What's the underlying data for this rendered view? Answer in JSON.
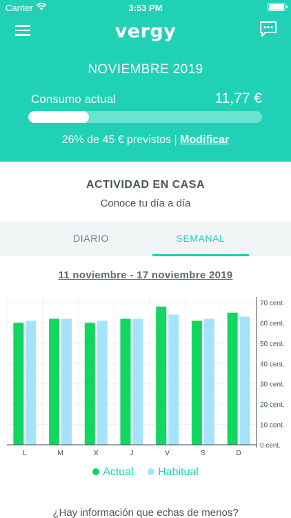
{
  "status_bar": {
    "carrier": "Carrier",
    "time": "3:53 PM"
  },
  "app": {
    "logo": "vergy"
  },
  "summary": {
    "month": "NOVIEMBRE 2019",
    "consumo_label": "Consumo actual",
    "consumo_value": "11,77 €",
    "progress_fraction": 0.26,
    "percent_text": "26%",
    "de_text": "de",
    "previstos_text": "45 € previstos",
    "separator": "|",
    "modificar_label": "Modificar"
  },
  "activity": {
    "title": "ACTIVIDAD EN CASA",
    "subtitle": "Conoce tu día a día"
  },
  "tabs": [
    {
      "label": "DIARIO",
      "active": false
    },
    {
      "label": "SEMANAL",
      "active": true
    }
  ],
  "date_range": "11 noviembre - 17 noviembre 2019",
  "colors": {
    "primary": "#21d1b6",
    "actual": "#11d65f",
    "habitual": "#a4e3fb"
  },
  "chart_data": {
    "type": "bar",
    "categories": [
      "L",
      "M",
      "X",
      "J",
      "V",
      "S",
      "D"
    ],
    "series": [
      {
        "name": "Actual",
        "values": [
          60,
          62,
          60,
          62,
          68,
          61,
          65
        ]
      },
      {
        "name": "Habitual",
        "values": [
          61,
          62,
          61,
          62,
          64,
          62,
          63
        ]
      }
    ],
    "y_ticks": [
      "70 cent.",
      "60 cent.",
      "50 cent.",
      "40 cent.",
      "30 cent.",
      "20 cent.",
      "10 cent.",
      "0 cent."
    ],
    "ylim": [
      0,
      70
    ],
    "grid": true,
    "legend_position": "bottom"
  },
  "legend": {
    "actual": "Actual",
    "habitual": "Habitual"
  },
  "footer_question": "¿Hay información que echas de menos?"
}
